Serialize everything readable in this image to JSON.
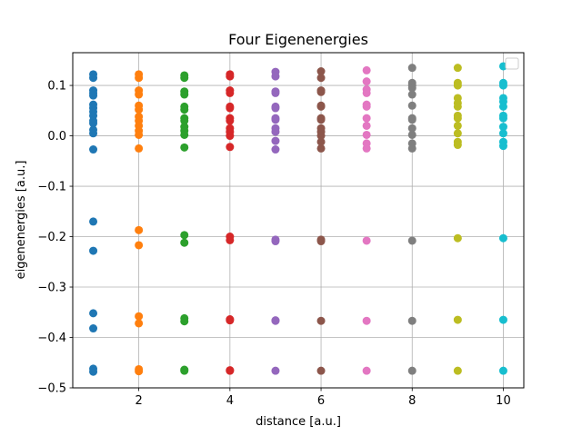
{
  "chart_data": {
    "type": "scatter",
    "title": "Four Eigenenergies",
    "xlabel": "distance [a.u.]",
    "ylabel": "eigenenergies [a.u.]",
    "xlim": [
      0.55,
      10.45
    ],
    "ylim": [
      -0.5,
      0.165
    ],
    "xticks": [
      2,
      4,
      6,
      8,
      10
    ],
    "xtick_labels": [
      "2",
      "4",
      "6",
      "8",
      "10"
    ],
    "yticks": [
      -0.5,
      -0.4,
      -0.3,
      -0.2,
      -0.1,
      0.0,
      0.1
    ],
    "ytick_labels": [
      "−0.5",
      "−0.4",
      "−0.3",
      "−0.2",
      "−0.1",
      "0.0",
      "0.1"
    ],
    "grid": true,
    "legend": {
      "placement": "upper right",
      "entries": []
    },
    "series": [
      {
        "color": "#1f77b4",
        "points": [
          [
            1,
            0.122
          ],
          [
            1,
            0.115
          ],
          [
            1,
            0.09
          ],
          [
            1,
            0.085
          ],
          [
            1,
            0.08
          ],
          [
            1,
            0.062
          ],
          [
            1,
            0.055
          ],
          [
            1,
            0.048
          ],
          [
            1,
            0.04
          ],
          [
            1,
            0.03
          ],
          [
            1,
            0.025
          ],
          [
            1,
            0.012
          ],
          [
            1,
            0.005
          ],
          [
            1,
            -0.027
          ],
          [
            1,
            -0.17
          ],
          [
            1,
            -0.228
          ],
          [
            1,
            -0.352
          ],
          [
            1,
            -0.382
          ],
          [
            1,
            -0.462
          ],
          [
            1,
            -0.468
          ]
        ]
      },
      {
        "color": "#ff7f0e",
        "points": [
          [
            2,
            0.122
          ],
          [
            2,
            0.115
          ],
          [
            2,
            0.09
          ],
          [
            2,
            0.082
          ],
          [
            2,
            0.06
          ],
          [
            2,
            0.052
          ],
          [
            2,
            0.038
          ],
          [
            2,
            0.03
          ],
          [
            2,
            0.02
          ],
          [
            2,
            0.01
          ],
          [
            2,
            0.002
          ],
          [
            2,
            -0.025
          ],
          [
            2,
            -0.187
          ],
          [
            2,
            -0.217
          ],
          [
            2,
            -0.358
          ],
          [
            2,
            -0.372
          ],
          [
            2,
            -0.463
          ],
          [
            2,
            -0.467
          ]
        ]
      },
      {
        "color": "#2ca02c",
        "points": [
          [
            3,
            0.12
          ],
          [
            3,
            0.115
          ],
          [
            3,
            0.088
          ],
          [
            3,
            0.082
          ],
          [
            3,
            0.058
          ],
          [
            3,
            0.052
          ],
          [
            3,
            0.035
          ],
          [
            3,
            0.03
          ],
          [
            3,
            0.018
          ],
          [
            3,
            0.01
          ],
          [
            3,
            0.002
          ],
          [
            3,
            -0.023
          ],
          [
            3,
            -0.197
          ],
          [
            3,
            -0.212
          ],
          [
            3,
            -0.362
          ],
          [
            3,
            -0.368
          ],
          [
            3,
            -0.464
          ],
          [
            3,
            -0.466
          ]
        ]
      },
      {
        "color": "#d62728",
        "points": [
          [
            4,
            0.122
          ],
          [
            4,
            0.118
          ],
          [
            4,
            0.09
          ],
          [
            4,
            0.085
          ],
          [
            4,
            0.058
          ],
          [
            4,
            0.055
          ],
          [
            4,
            0.035
          ],
          [
            4,
            0.03
          ],
          [
            4,
            0.015
          ],
          [
            4,
            0.008
          ],
          [
            4,
            0.0
          ],
          [
            4,
            -0.022
          ],
          [
            4,
            -0.2
          ],
          [
            4,
            -0.207
          ],
          [
            4,
            -0.364
          ],
          [
            4,
            -0.366
          ],
          [
            4,
            -0.465
          ],
          [
            4,
            -0.466
          ]
        ]
      },
      {
        "color": "#9467bd",
        "points": [
          [
            5,
            0.127
          ],
          [
            5,
            0.118
          ],
          [
            5,
            0.088
          ],
          [
            5,
            0.085
          ],
          [
            5,
            0.058
          ],
          [
            5,
            0.055
          ],
          [
            5,
            0.035
          ],
          [
            5,
            0.032
          ],
          [
            5,
            0.015
          ],
          [
            5,
            0.008
          ],
          [
            5,
            -0.01
          ],
          [
            5,
            -0.027
          ],
          [
            5,
            -0.206
          ],
          [
            5,
            -0.209
          ],
          [
            5,
            -0.366
          ],
          [
            5,
            -0.367
          ],
          [
            5,
            -0.466
          ]
        ]
      },
      {
        "color": "#8c564b",
        "points": [
          [
            6,
            0.128
          ],
          [
            6,
            0.115
          ],
          [
            6,
            0.09
          ],
          [
            6,
            0.087
          ],
          [
            6,
            0.06
          ],
          [
            6,
            0.058
          ],
          [
            6,
            0.035
          ],
          [
            6,
            0.032
          ],
          [
            6,
            0.015
          ],
          [
            6,
            0.008
          ],
          [
            6,
            0.0
          ],
          [
            6,
            -0.012
          ],
          [
            6,
            -0.025
          ],
          [
            6,
            -0.206
          ],
          [
            6,
            -0.209
          ],
          [
            6,
            -0.367
          ],
          [
            6,
            -0.466
          ]
        ]
      },
      {
        "color": "#e377c2",
        "points": [
          [
            7,
            0.13
          ],
          [
            7,
            0.108
          ],
          [
            7,
            0.092
          ],
          [
            7,
            0.085
          ],
          [
            7,
            0.062
          ],
          [
            7,
            0.058
          ],
          [
            7,
            0.035
          ],
          [
            7,
            0.02
          ],
          [
            7,
            0.002
          ],
          [
            7,
            -0.015
          ],
          [
            7,
            -0.025
          ],
          [
            7,
            -0.208
          ],
          [
            7,
            -0.367
          ],
          [
            7,
            -0.466
          ]
        ]
      },
      {
        "color": "#7f7f7f",
        "points": [
          [
            8,
            0.135
          ],
          [
            8,
            0.105
          ],
          [
            8,
            0.1
          ],
          [
            8,
            0.095
          ],
          [
            8,
            0.082
          ],
          [
            8,
            0.06
          ],
          [
            8,
            0.035
          ],
          [
            8,
            0.032
          ],
          [
            8,
            0.015
          ],
          [
            8,
            0.002
          ],
          [
            8,
            -0.015
          ],
          [
            8,
            -0.025
          ],
          [
            8,
            -0.208
          ],
          [
            8,
            -0.367
          ],
          [
            8,
            -0.466
          ]
        ]
      },
      {
        "color": "#bcbd22",
        "points": [
          [
            9,
            0.135
          ],
          [
            9,
            0.105
          ],
          [
            9,
            0.1
          ],
          [
            9,
            0.075
          ],
          [
            9,
            0.065
          ],
          [
            9,
            0.058
          ],
          [
            9,
            0.04
          ],
          [
            9,
            0.035
          ],
          [
            9,
            0.02
          ],
          [
            9,
            0.005
          ],
          [
            9,
            -0.012
          ],
          [
            9,
            -0.018
          ],
          [
            9,
            -0.203
          ],
          [
            9,
            -0.365
          ],
          [
            9,
            -0.466
          ]
        ]
      },
      {
        "color": "#17becf",
        "points": [
          [
            10,
            0.138
          ],
          [
            10,
            0.105
          ],
          [
            10,
            0.1
          ],
          [
            10,
            0.075
          ],
          [
            10,
            0.068
          ],
          [
            10,
            0.058
          ],
          [
            10,
            0.04
          ],
          [
            10,
            0.035
          ],
          [
            10,
            0.018
          ],
          [
            10,
            0.005
          ],
          [
            10,
            -0.012
          ],
          [
            10,
            -0.02
          ],
          [
            10,
            -0.203
          ],
          [
            10,
            -0.365
          ],
          [
            10,
            -0.466
          ]
        ]
      }
    ]
  }
}
